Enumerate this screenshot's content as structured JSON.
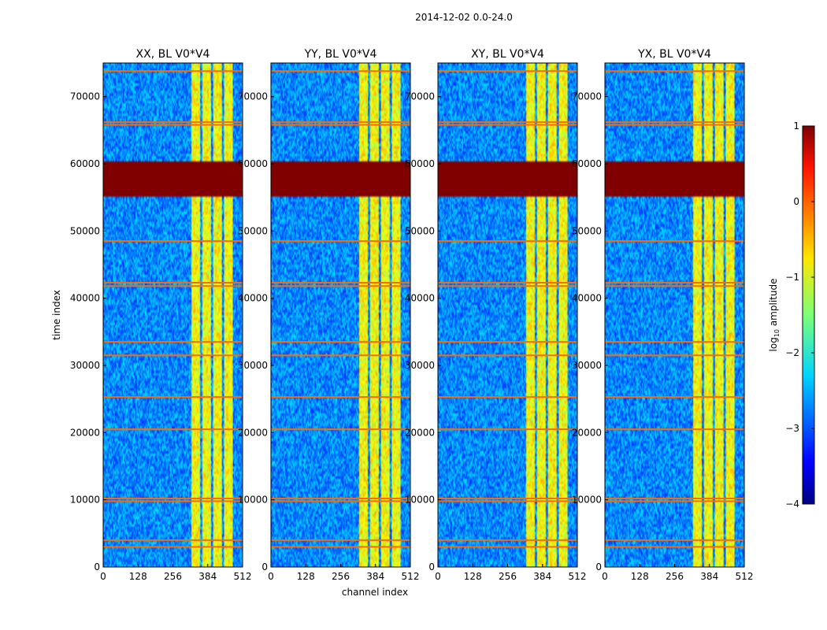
{
  "figure": {
    "suptitle": "2014-12-02 0.0-24.0",
    "xlabel": "channel index",
    "ylabel": "time index",
    "colorbar_label": "log",
    "colorbar_label_sub": "10",
    "colorbar_label_rest": " amplitude"
  },
  "colorbar": {
    "range": [
      -4,
      1
    ],
    "ticks": [
      1,
      0,
      -1,
      -2,
      -3,
      -4
    ],
    "tick_labels": [
      "1",
      "0",
      "−1",
      "−2",
      "−3",
      "−4"
    ],
    "colormap": "jet"
  },
  "chart_data": [
    {
      "type": "heatmap",
      "title": "XX, BL V0*V4",
      "xlim": [
        0,
        512
      ],
      "ylim": [
        0,
        75000
      ],
      "x_ticks": [
        0,
        128,
        256,
        384,
        512
      ],
      "y_ticks": [
        0,
        10000,
        20000,
        30000,
        40000,
        50000,
        60000,
        70000
      ],
      "value_scale": "log10 amplitude",
      "background_level": -2.7,
      "bright_channel_bands": [
        [
          325,
          355
        ],
        [
          365,
          395
        ],
        [
          405,
          435
        ],
        [
          445,
          475
        ]
      ],
      "saturated_time_block": [
        55000,
        60500
      ],
      "flagged_time_rows": [
        3000,
        4000,
        9800,
        10200,
        20500,
        25300,
        31500,
        33500,
        41800,
        42300,
        48500,
        65800,
        66200,
        73800
      ]
    },
    {
      "type": "heatmap",
      "title": "YY, BL V0*V4",
      "xlim": [
        0,
        512
      ],
      "ylim": [
        0,
        75000
      ],
      "x_ticks": [
        0,
        128,
        256,
        384,
        512
      ],
      "y_ticks": [
        0,
        10000,
        20000,
        30000,
        40000,
        50000,
        60000,
        70000
      ],
      "value_scale": "log10 amplitude",
      "background_level": -2.7,
      "bright_channel_bands": [
        [
          325,
          355
        ],
        [
          365,
          395
        ],
        [
          405,
          435
        ],
        [
          445,
          475
        ]
      ],
      "saturated_time_block": [
        55000,
        60500
      ],
      "flagged_time_rows": [
        3000,
        4000,
        9800,
        10200,
        20500,
        25300,
        31500,
        33500,
        41800,
        42300,
        48500,
        65800,
        66200,
        73800
      ]
    },
    {
      "type": "heatmap",
      "title": "XY, BL V0*V4",
      "xlim": [
        0,
        512
      ],
      "ylim": [
        0,
        75000
      ],
      "x_ticks": [
        0,
        128,
        256,
        384,
        512
      ],
      "y_ticks": [
        0,
        10000,
        20000,
        30000,
        40000,
        50000,
        60000,
        70000
      ],
      "value_scale": "log10 amplitude",
      "background_level": -2.7,
      "bright_channel_bands": [
        [
          325,
          355
        ],
        [
          365,
          395
        ],
        [
          405,
          435
        ],
        [
          445,
          475
        ]
      ],
      "saturated_time_block": [
        55000,
        60500
      ],
      "flagged_time_rows": [
        3000,
        4000,
        9800,
        10200,
        20500,
        25300,
        31500,
        33500,
        41800,
        42300,
        48500,
        65800,
        66200,
        73800
      ]
    },
    {
      "type": "heatmap",
      "title": "YX, BL V0*V4",
      "xlim": [
        0,
        512
      ],
      "ylim": [
        0,
        75000
      ],
      "x_ticks": [
        0,
        128,
        256,
        384,
        512
      ],
      "y_ticks": [
        0,
        10000,
        20000,
        30000,
        40000,
        50000,
        60000,
        70000
      ],
      "value_scale": "log10 amplitude",
      "background_level": -2.7,
      "bright_channel_bands": [
        [
          325,
          355
        ],
        [
          365,
          395
        ],
        [
          405,
          435
        ],
        [
          445,
          475
        ]
      ],
      "saturated_time_block": [
        55000,
        60500
      ],
      "flagged_time_rows": [
        3000,
        4000,
        9800,
        10200,
        20500,
        25300,
        31500,
        33500,
        41800,
        42300,
        48500,
        65800,
        66200,
        73800
      ]
    }
  ]
}
